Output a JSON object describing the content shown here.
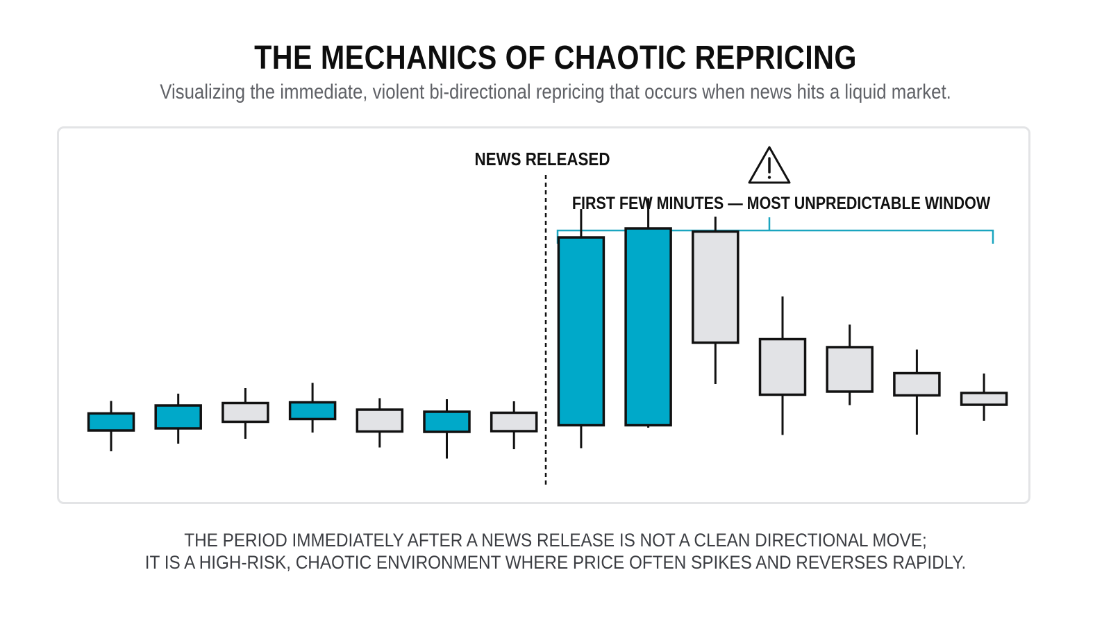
{
  "header": {
    "title": "THE MECHANICS OF CHAOTIC REPRICING",
    "subtitle": "Visualizing the immediate, violent bi-directional repricing that occurs when news hits a liquid market."
  },
  "footer": {
    "line1": "THE PERIOD IMMEDIATELY AFTER A NEWS RELEASE IS NOT A CLEAN DIRECTIONAL MOVE;",
    "line2": "IT IS A HIGH-RISK, CHAOTIC ENVIRONMENT WHERE PRICE OFTEN SPIKES AND REVERSES RAPIDLY."
  },
  "colors": {
    "bullish": "#00a9c9",
    "bearish": "#e2e3e6",
    "outline": "#111111",
    "bracket": "#1aa5bf",
    "panel_border": "#e3e4e6"
  },
  "icons": {
    "warning": "warning-triangle-icon"
  },
  "chart_data": {
    "type": "candlestick",
    "title": "",
    "xlabel": "",
    "ylabel": "",
    "grid": false,
    "ylim": [
      0,
      100
    ],
    "annotations": {
      "news_label": "NEWS RELEASED",
      "news_after_index": 6,
      "window_label": "FIRST FEW MINUTES — MOST UNPREDICTABLE WINDOW",
      "window_start_index": 7,
      "window_end_index": 13
    },
    "candles": [
      {
        "open": 19.9,
        "close": 15.0,
        "high": 23.5,
        "low": 9.0,
        "color": "blue"
      },
      {
        "open": 22.2,
        "close": 15.6,
        "high": 25.6,
        "low": 11.2,
        "color": "blue"
      },
      {
        "open": 22.9,
        "close": 17.5,
        "high": 27.2,
        "low": 12.6,
        "color": "gray"
      },
      {
        "open": 23.1,
        "close": 18.3,
        "high": 28.7,
        "low": 14.4,
        "color": "blue"
      },
      {
        "open": 21.0,
        "close": 14.7,
        "high": 24.3,
        "low": 10.1,
        "color": "gray"
      },
      {
        "open": 20.4,
        "close": 14.6,
        "high": 24.0,
        "low": 6.9,
        "color": "blue"
      },
      {
        "open": 20.1,
        "close": 14.8,
        "high": 23.4,
        "low": 9.6,
        "color": "gray"
      },
      {
        "open": 70.6,
        "close": 16.5,
        "high": 78.8,
        "low": 9.9,
        "color": "blue"
      },
      {
        "open": 73.2,
        "close": 16.5,
        "high": 81.9,
        "low": 15.8,
        "color": "blue"
      },
      {
        "open": 72.3,
        "close": 40.3,
        "high": 76.6,
        "low": 28.4,
        "color": "gray"
      },
      {
        "open": 41.3,
        "close": 25.3,
        "high": 53.6,
        "low": 13.7,
        "color": "gray"
      },
      {
        "open": 39.0,
        "close": 26.2,
        "high": 45.5,
        "low": 22.3,
        "color": "gray"
      },
      {
        "open": 31.5,
        "close": 25.1,
        "high": 38.3,
        "low": 13.8,
        "color": "gray"
      },
      {
        "open": 25.8,
        "close": 22.4,
        "high": 31.4,
        "low": 17.8,
        "color": "gray"
      }
    ]
  }
}
